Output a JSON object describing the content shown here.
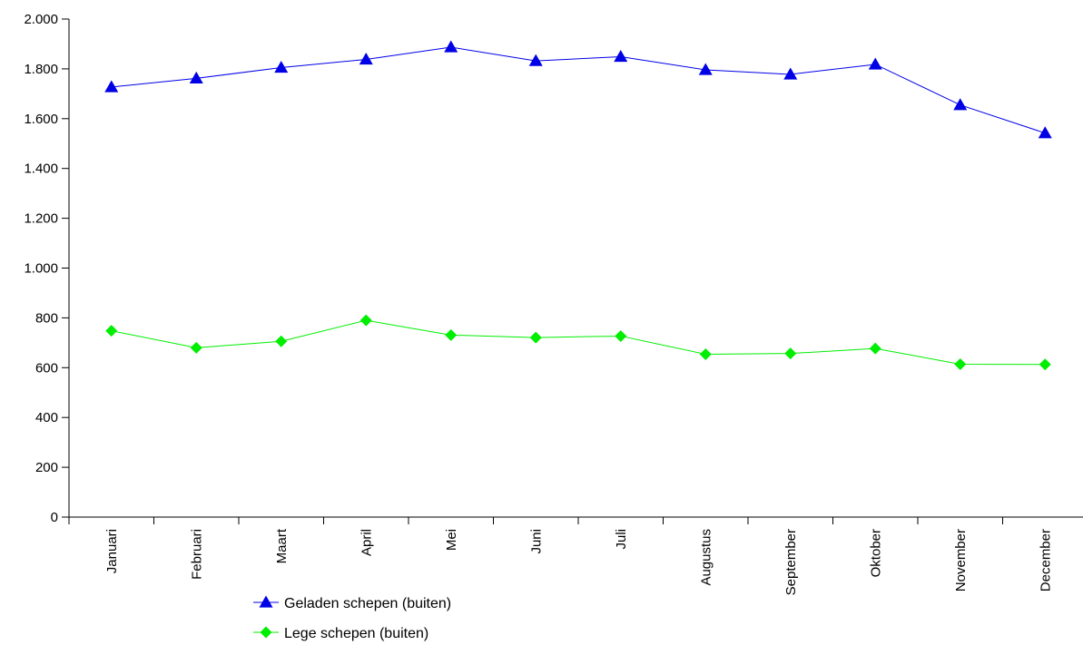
{
  "chart_data": {
    "type": "line",
    "categories": [
      "Januari",
      "Februari",
      "Maart",
      "April",
      "Mei",
      "Juni",
      "Juli",
      "Augustus",
      "September",
      "Oktober",
      "November",
      "December"
    ],
    "series": [
      {
        "name": "Geladen schepen (buiten)",
        "color": "#0000e6",
        "marker": "triangle",
        "values": [
          1727,
          1762,
          1805,
          1838,
          1887,
          1832,
          1849,
          1796,
          1778,
          1818,
          1655,
          1542
        ]
      },
      {
        "name": "Lege schepen (buiten)",
        "color": "#00ee00",
        "marker": "diamond",
        "values": [
          748,
          680,
          706,
          790,
          731,
          721,
          727,
          654,
          657,
          677,
          614,
          613
        ]
      }
    ],
    "title": "",
    "xlabel": "",
    "ylabel": "",
    "ylim": [
      0,
      2000
    ],
    "yticks": [
      0,
      200,
      400,
      600,
      800,
      1000,
      1200,
      1400,
      1600,
      1800,
      2000
    ],
    "ytick_labels": [
      "0",
      "200",
      "400",
      "600",
      "800",
      "1.000",
      "1.200",
      "1.400",
      "1.600",
      "1.800",
      "2.000"
    ],
    "grid": false,
    "legend_position": "bottom-left"
  }
}
